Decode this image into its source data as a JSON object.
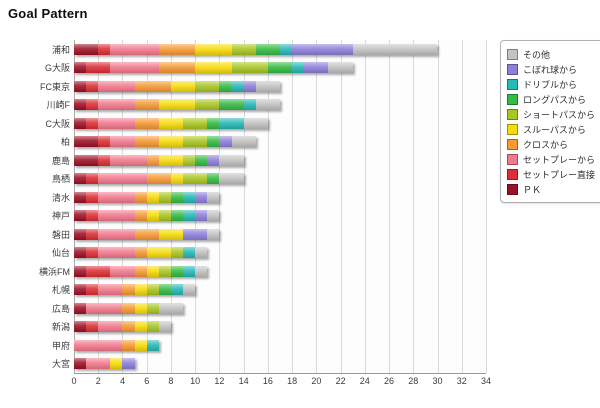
{
  "title": "Goal Pattern",
  "chart_data": {
    "type": "bar",
    "orientation": "horizontal",
    "stacked": true,
    "title": "Goal Pattern",
    "grid": true,
    "legend_position": "right",
    "xlim": [
      0,
      34
    ],
    "x_ticks": [
      0,
      2,
      4,
      6,
      8,
      10,
      12,
      14,
      16,
      18,
      20,
      22,
      24,
      26,
      28,
      30,
      32,
      34
    ],
    "categories": [
      "浦和",
      "G大阪",
      "FC東京",
      "川崎F",
      "C大阪",
      "柏",
      "鹿島",
      "鳥栖",
      "清水",
      "神戸",
      "磐田",
      "仙台",
      "横浜FM",
      "札幌",
      "広島",
      "新潟",
      "甲府",
      "大宮"
    ],
    "legend_order_top_to_bottom": [
      "その他",
      "こぼれ球から",
      "ドリブルから",
      "ロングパスから",
      "ショートパスから",
      "スルーパスから",
      "クロスから",
      "セットプレーから",
      "セットプレー直接",
      "ＰＫ"
    ],
    "series": [
      {
        "name": "ＰＫ",
        "color": "#9d1126",
        "values": [
          2,
          1,
          1,
          1,
          1,
          2,
          2,
          1,
          1,
          1,
          1,
          1,
          1,
          1,
          1,
          1,
          0,
          1
        ]
      },
      {
        "name": "セットプレー直接",
        "color": "#dd2f35",
        "values": [
          1,
          2,
          1,
          1,
          1,
          1,
          1,
          1,
          1,
          1,
          1,
          1,
          2,
          1,
          0,
          1,
          0,
          0
        ]
      },
      {
        "name": "セットプレーから",
        "color": "#f3798d",
        "values": [
          4,
          4,
          3,
          3,
          3,
          2,
          3,
          4,
          3,
          3,
          3,
          3,
          2,
          2,
          3,
          2,
          4,
          2
        ]
      },
      {
        "name": "クロスから",
        "color": "#f79a33",
        "values": [
          3,
          3,
          3,
          2,
          2,
          2,
          1,
          2,
          1,
          1,
          2,
          1,
          1,
          1,
          1,
          1,
          1,
          0
        ]
      },
      {
        "name": "スルーパスから",
        "color": "#f7dc0b",
        "values": [
          3,
          3,
          2,
          3,
          2,
          2,
          2,
          1,
          1,
          1,
          2,
          2,
          1,
          1,
          1,
          1,
          1,
          1
        ]
      },
      {
        "name": "ショートパスから",
        "color": "#a9c723",
        "values": [
          2,
          3,
          2,
          2,
          2,
          2,
          1,
          2,
          1,
          1,
          0,
          1,
          1,
          1,
          1,
          1,
          0,
          0
        ]
      },
      {
        "name": "ロングパスから",
        "color": "#35bb44",
        "values": [
          2,
          2,
          1,
          2,
          1,
          1,
          1,
          1,
          1,
          1,
          0,
          0,
          1,
          1,
          0,
          0,
          0,
          0
        ]
      },
      {
        "name": "ドリブルから",
        "color": "#27b8b8",
        "values": [
          1,
          1,
          1,
          1,
          2,
          0,
          0,
          0,
          1,
          1,
          0,
          1,
          1,
          1,
          0,
          0,
          1,
          0
        ]
      },
      {
        "name": "こぼれ球から",
        "color": "#8d7fdb",
        "values": [
          5,
          2,
          1,
          0,
          0,
          1,
          1,
          0,
          1,
          1,
          2,
          0,
          0,
          0,
          0,
          0,
          0,
          1
        ]
      },
      {
        "name": "その他",
        "color": "#c3c3c3",
        "values": [
          7,
          2,
          2,
          2,
          2,
          2,
          2,
          2,
          1,
          1,
          1,
          1,
          1,
          1,
          2,
          1,
          0,
          0
        ]
      }
    ],
    "totals": [
      30,
      23,
      17,
      17,
      16,
      15,
      14,
      14,
      12,
      12,
      12,
      11,
      11,
      10,
      9,
      8,
      7,
      5
    ]
  }
}
